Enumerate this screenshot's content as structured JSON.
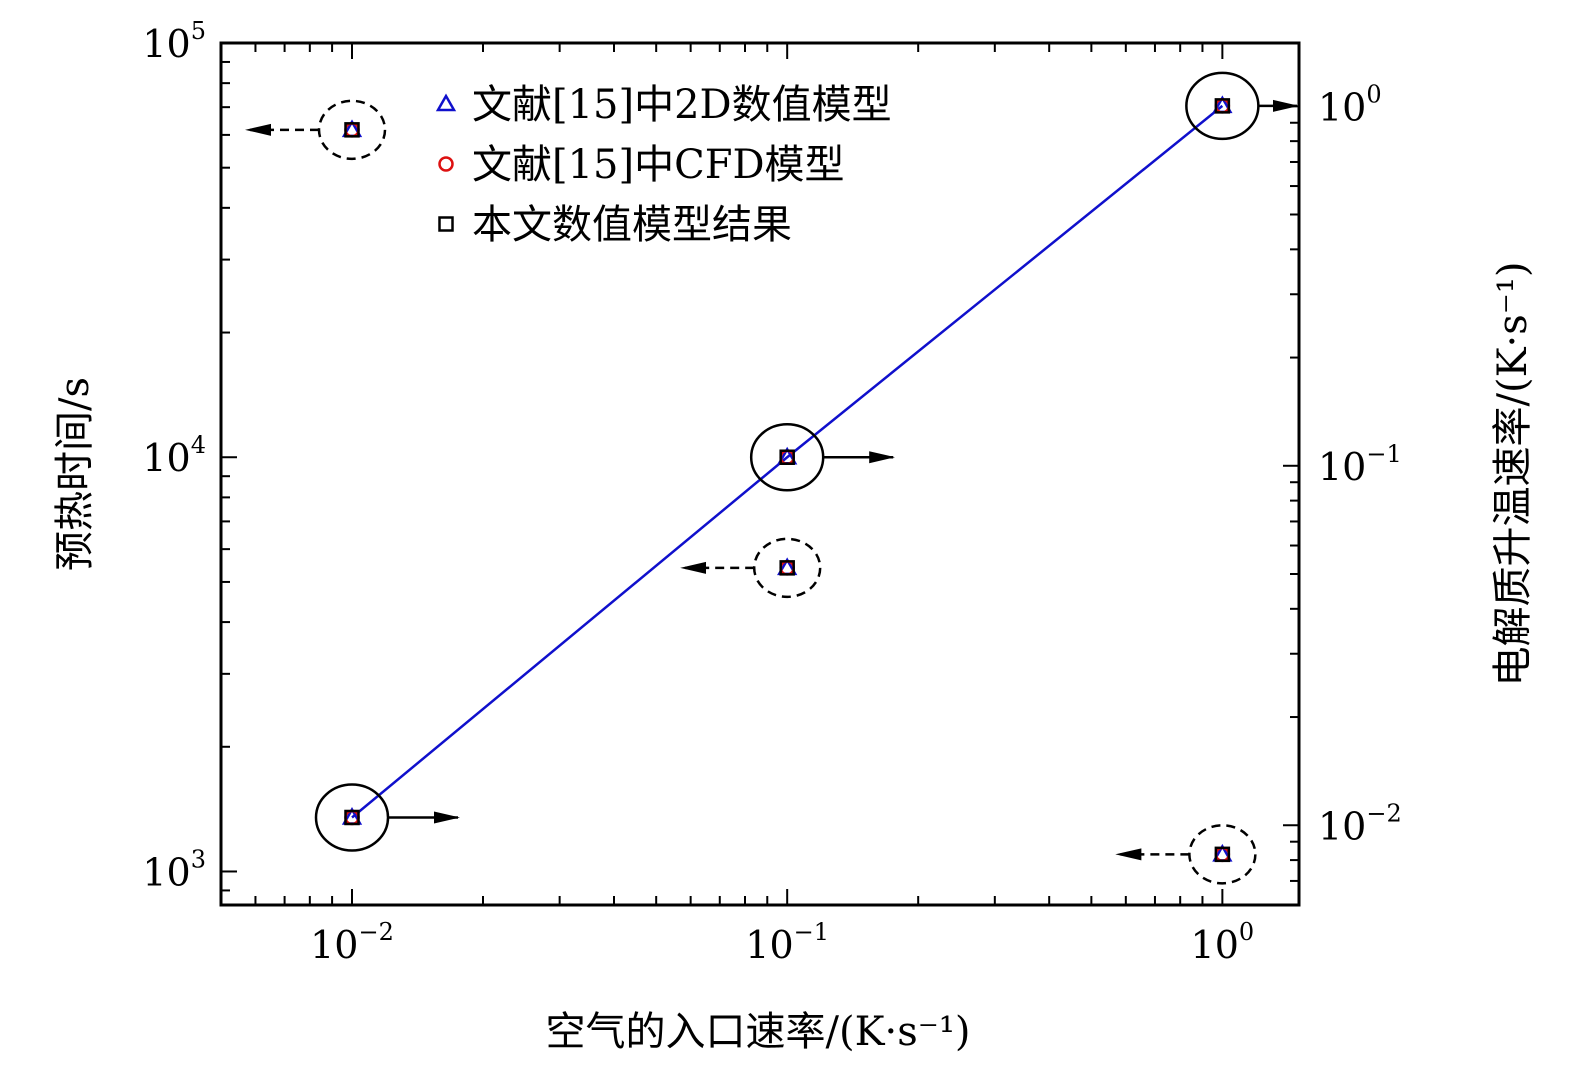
{
  "chart_data": {
    "type": "scatter",
    "title": "",
    "xlabel": "空气的入口速率/(K·s⁻¹)",
    "ylabel": "预热时间/s",
    "ylabel_right": "电解质升温速率/(K·s⁻¹)",
    "x_scale": "log",
    "y_scale": "log",
    "y2_scale": "log",
    "xlim": [
      0.005,
      1.5
    ],
    "ylim": [
      830,
      100000
    ],
    "y2lim": [
      0.006,
      1.5
    ],
    "grid": false,
    "legend_position": "top-center",
    "x_ticks": [
      {
        "value": 0.01,
        "base": "10",
        "exp": "−2"
      },
      {
        "value": 0.1,
        "base": "10",
        "exp": "−1"
      },
      {
        "value": 1,
        "base": "10",
        "exp": "0"
      }
    ],
    "y_ticks": [
      {
        "value": 1000,
        "base": "10",
        "exp": "3"
      },
      {
        "value": 10000,
        "base": "10",
        "exp": "4"
      },
      {
        "value": 100000,
        "base": "10",
        "exp": "5"
      }
    ],
    "y2_ticks": [
      {
        "value": 0.01,
        "base": "10",
        "exp": "−2"
      },
      {
        "value": 0.1,
        "base": "10",
        "exp": "−1"
      },
      {
        "value": 1,
        "base": "10",
        "exp": "0"
      }
    ],
    "series": [
      {
        "name": "文献[15]中2D数值模型",
        "marker": "triangle",
        "color": "#1010cc",
        "preheat_time": [
          {
            "x": 0.01,
            "y": 1350
          },
          {
            "x": 0.1,
            "y": 10000
          },
          {
            "x": 1,
            "y": 70500
          }
        ],
        "heating_rate": [
          {
            "x": 0.01,
            "y": 0.86
          },
          {
            "x": 0.1,
            "y": 0.052
          },
          {
            "x": 1,
            "y": 0.0083
          }
        ]
      },
      {
        "name": "文献[15]中CFD模型",
        "marker": "circle",
        "color": "#dd1111",
        "preheat_time": [
          {
            "x": 0.01,
            "y": 1350
          },
          {
            "x": 0.1,
            "y": 10000
          },
          {
            "x": 1,
            "y": 70500
          }
        ],
        "heating_rate": [
          {
            "x": 0.01,
            "y": 0.86
          },
          {
            "x": 0.1,
            "y": 0.052
          },
          {
            "x": 1,
            "y": 0.0083
          }
        ]
      },
      {
        "name": "本文数值模型结果",
        "marker": "square",
        "color": "#000000",
        "preheat_time": [
          {
            "x": 0.01,
            "y": 1350
          },
          {
            "x": 0.1,
            "y": 10000
          },
          {
            "x": 1,
            "y": 70500
          }
        ],
        "heating_rate": [
          {
            "x": 0.01,
            "y": 0.86
          },
          {
            "x": 0.1,
            "y": 0.052
          },
          {
            "x": 1,
            "y": 0.0083
          }
        ]
      }
    ],
    "fit_line": {
      "color": "#1010cc",
      "points": [
        {
          "x": 0.01,
          "y": 1350
        },
        {
          "x": 0.1,
          "y": 10000
        },
        {
          "x": 1,
          "y": 70500
        }
      ]
    },
    "annotations": [
      {
        "type": "solid-circle-arrow",
        "x": 0.01,
        "y": 1350,
        "axis": "left",
        "arrow": "right"
      },
      {
        "type": "solid-circle-arrow",
        "x": 0.1,
        "y": 10000,
        "axis": "left",
        "arrow": "right"
      },
      {
        "type": "solid-circle-arrow",
        "x": 1,
        "y": 70500,
        "axis": "left",
        "arrow": "right"
      },
      {
        "type": "dashed-circle-arrow",
        "x": 0.01,
        "y": 0.86,
        "axis": "right",
        "arrow": "left"
      },
      {
        "type": "dashed-circle-arrow",
        "x": 0.1,
        "y": 0.052,
        "axis": "right",
        "arrow": "left"
      },
      {
        "type": "dashed-circle-arrow",
        "x": 1,
        "y": 0.0083,
        "axis": "right",
        "arrow": "left"
      }
    ]
  }
}
